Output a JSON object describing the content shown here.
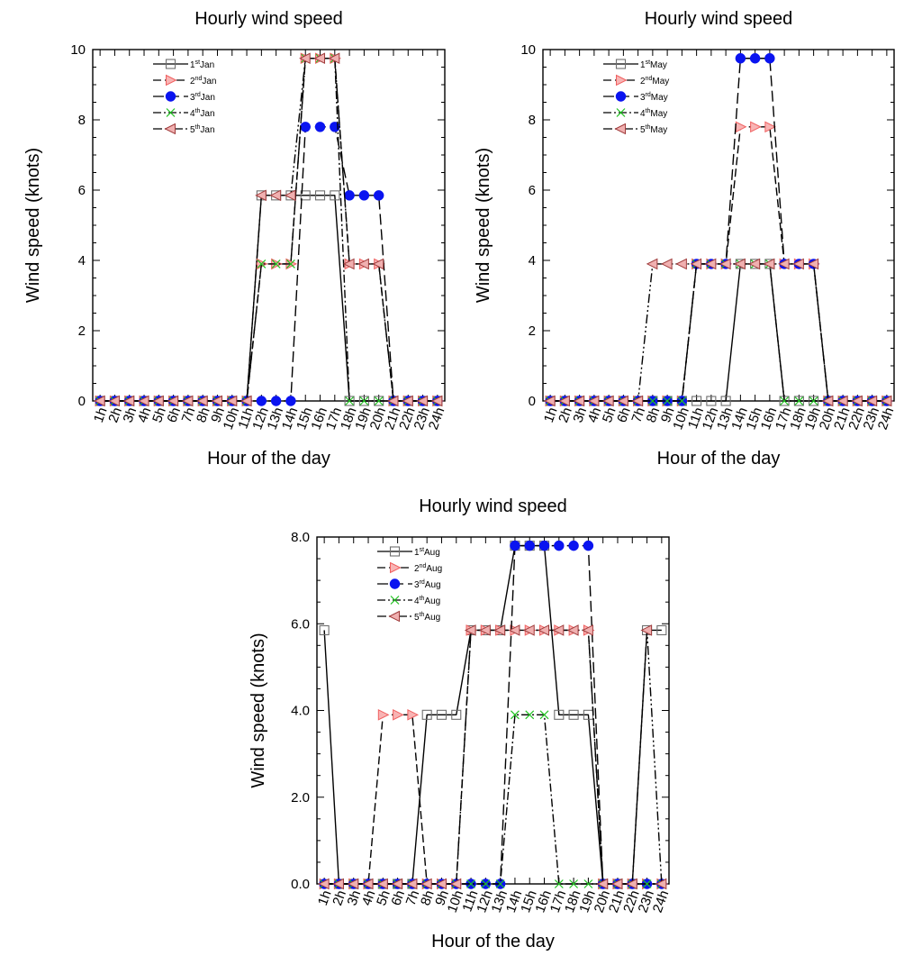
{
  "chart_data": [
    {
      "type": "line",
      "title": "Hourly wind speed",
      "xlabel": "Hour of the day",
      "ylabel": "Wind speed (knots)",
      "ylim": [
        0,
        10
      ],
      "yticks": [
        "0",
        "2",
        "4",
        "6",
        "8",
        "10"
      ],
      "ytick_values": [
        0,
        2,
        4,
        6,
        8,
        10
      ],
      "categories": [
        "1h",
        "2h",
        "3h",
        "4h",
        "5h",
        "6h",
        "7h",
        "8h",
        "9h",
        "10h",
        "11h",
        "12h",
        "13h",
        "14h",
        "15h",
        "16h",
        "17h",
        "18h",
        "19h",
        "20h",
        "21h",
        "22h",
        "23h",
        "24h"
      ],
      "legend_position": "top-left",
      "series": [
        {
          "name": "1st Jan",
          "label_main": "1",
          "label_sup": "st",
          "label_tail": "Jan",
          "marker": "square",
          "dash": "solid",
          "values": [
            0,
            0,
            0,
            0,
            0,
            0,
            0,
            0,
            0,
            0,
            0,
            5.85,
            5.85,
            5.85,
            5.85,
            5.85,
            5.85,
            0,
            0,
            0,
            0,
            0,
            0,
            0
          ]
        },
        {
          "name": "2nd Jan",
          "label_main": "2",
          "label_sup": "nd",
          "label_tail": "Jan",
          "marker": "triangle-right",
          "dash": "dash",
          "values": [
            0,
            0,
            0,
            0,
            0,
            0,
            0,
            0,
            0,
            0,
            0,
            3.9,
            3.9,
            3.9,
            9.75,
            9.75,
            9.75,
            3.9,
            3.9,
            3.9,
            0,
            0,
            0,
            0
          ]
        },
        {
          "name": "3rd Jan",
          "label_main": "3",
          "label_sup": "rd",
          "label_tail": "Jan",
          "marker": "circle",
          "dash": "longdash",
          "values": [
            0,
            0,
            0,
            0,
            0,
            0,
            0,
            0,
            0,
            0,
            0,
            0,
            0,
            0,
            7.8,
            7.8,
            7.8,
            5.85,
            5.85,
            5.85,
            0,
            0,
            0,
            0
          ]
        },
        {
          "name": "4th Jan",
          "label_main": "4",
          "label_sup": "th",
          "label_tail": "Jan",
          "marker": "x",
          "dash": "dashdot",
          "values": [
            0,
            0,
            0,
            0,
            0,
            0,
            0,
            0,
            0,
            0,
            0,
            3.9,
            3.9,
            3.9,
            9.75,
            9.75,
            9.75,
            0,
            0,
            0,
            0,
            0,
            0,
            0
          ]
        },
        {
          "name": "5th Jan",
          "label_main": "5",
          "label_sup": "th",
          "label_tail": "Jan",
          "marker": "triangle-left",
          "dash": "dashdotdot",
          "values": [
            0,
            0,
            0,
            0,
            0,
            0,
            0,
            0,
            0,
            0,
            0,
            5.85,
            5.85,
            5.85,
            9.75,
            9.75,
            9.75,
            3.9,
            3.9,
            3.9,
            0,
            0,
            0,
            0
          ]
        }
      ]
    },
    {
      "type": "line",
      "title": "Hourly wind speed",
      "xlabel": "Hour of the day",
      "ylabel": "Wind speed (knots)",
      "ylim": [
        0,
        10
      ],
      "yticks": [
        "0",
        "2",
        "4",
        "6",
        "8",
        "10"
      ],
      "ytick_values": [
        0,
        2,
        4,
        6,
        8,
        10
      ],
      "categories": [
        "1h",
        "2h",
        "3h",
        "4h",
        "5h",
        "6h",
        "7h",
        "8h",
        "9h",
        "10h",
        "11h",
        "12h",
        "13h",
        "14h",
        "15h",
        "16h",
        "17h",
        "18h",
        "19h",
        "20h",
        "21h",
        "22h",
        "23h",
        "24h"
      ],
      "legend_position": "top-left",
      "series": [
        {
          "name": "1st May",
          "label_main": "1",
          "label_sup": "st",
          "label_tail": "May",
          "marker": "square",
          "dash": "solid",
          "values": [
            0,
            0,
            0,
            0,
            0,
            0,
            0,
            0,
            0,
            0,
            0,
            0,
            0,
            3.9,
            3.9,
            3.9,
            0,
            0,
            0,
            0,
            0,
            0,
            0,
            0
          ]
        },
        {
          "name": "2nd May",
          "label_main": "2",
          "label_sup": "nd",
          "label_tail": "May",
          "marker": "triangle-right",
          "dash": "dash",
          "values": [
            0,
            0,
            0,
            0,
            0,
            0,
            0,
            0,
            0,
            0,
            3.9,
            3.9,
            3.9,
            7.8,
            7.8,
            7.8,
            3.9,
            3.9,
            3.9,
            0,
            0,
            0,
            0,
            0
          ]
        },
        {
          "name": "3rd May",
          "label_main": "3",
          "label_sup": "rd",
          "label_tail": "May",
          "marker": "circle",
          "dash": "longdash",
          "values": [
            0,
            0,
            0,
            0,
            0,
            0,
            0,
            0,
            0,
            0,
            3.9,
            3.9,
            3.9,
            9.75,
            9.75,
            9.75,
            3.9,
            3.9,
            3.9,
            0,
            0,
            0,
            0,
            0
          ]
        },
        {
          "name": "4th May",
          "label_main": "4",
          "label_sup": "th",
          "label_tail": "May",
          "marker": "x",
          "dash": "dashdot",
          "values": [
            0,
            0,
            0,
            0,
            0,
            0,
            0,
            0,
            0,
            0,
            3.9,
            3.9,
            3.9,
            3.9,
            3.9,
            3.9,
            0,
            0,
            0,
            0,
            0,
            0,
            0,
            0
          ]
        },
        {
          "name": "5th May",
          "label_main": "5",
          "label_sup": "th",
          "label_tail": "May",
          "marker": "triangle-left",
          "dash": "dashdotdot",
          "values": [
            0,
            0,
            0,
            0,
            0,
            0,
            0,
            3.9,
            3.9,
            3.9,
            3.9,
            3.9,
            3.9,
            3.9,
            3.9,
            3.9,
            3.9,
            3.9,
            3.9,
            0,
            0,
            0,
            0,
            0
          ]
        }
      ]
    },
    {
      "type": "line",
      "title": "Hourly wind speed",
      "xlabel": "Hour of the day",
      "ylabel": "Wind speed (knots)",
      "ylim": [
        0,
        8
      ],
      "yticks": [
        "0.0",
        "2.0",
        "4.0",
        "6.0",
        "8.0"
      ],
      "ytick_values": [
        0,
        2,
        4,
        6,
        8
      ],
      "categories": [
        "1h",
        "2h",
        "3h",
        "4h",
        "5h",
        "6h",
        "7h",
        "8h",
        "9h",
        "10h",
        "11h",
        "12h",
        "13h",
        "14h",
        "15h",
        "16h",
        "17h",
        "18h",
        "19h",
        "20h",
        "21h",
        "22h",
        "23h",
        "24h"
      ],
      "legend_position": "top-left",
      "series": [
        {
          "name": "1st Aug",
          "label_main": "1",
          "label_sup": "st",
          "label_tail": "Aug",
          "marker": "square",
          "dash": "solid",
          "values": [
            5.85,
            0,
            0,
            0,
            0,
            0,
            0,
            3.9,
            3.9,
            3.9,
            5.85,
            5.85,
            5.85,
            7.8,
            7.8,
            7.8,
            3.9,
            3.9,
            3.9,
            0,
            0,
            0,
            5.85,
            5.85
          ]
        },
        {
          "name": "2nd Aug",
          "label_main": "2",
          "label_sup": "nd",
          "label_tail": "Aug",
          "marker": "triangle-right",
          "dash": "dash",
          "values": [
            0,
            0,
            0,
            0,
            3.9,
            3.9,
            3.9,
            0,
            0,
            0,
            5.85,
            5.85,
            5.85,
            5.85,
            5.85,
            5.85,
            5.85,
            5.85,
            5.85,
            0,
            0,
            0,
            0,
            0
          ]
        },
        {
          "name": "3rd Aug",
          "label_main": "3",
          "label_sup": "rd",
          "label_tail": "Aug",
          "marker": "circle",
          "dash": "longdash",
          "values": [
            0,
            0,
            0,
            0,
            0,
            0,
            0,
            0,
            0,
            0,
            0,
            0,
            0,
            7.8,
            7.8,
            7.8,
            7.8,
            7.8,
            7.8,
            0,
            0,
            0,
            0,
            0
          ]
        },
        {
          "name": "4th Aug",
          "label_main": "4",
          "label_sup": "th",
          "label_tail": "Aug",
          "marker": "x",
          "dash": "dashdot",
          "values": [
            0,
            0,
            0,
            0,
            0,
            0,
            0,
            0,
            0,
            0,
            0,
            0,
            0,
            3.9,
            3.9,
            3.9,
            0,
            0,
            0,
            0,
            0,
            0,
            0,
            0
          ]
        },
        {
          "name": "5th Aug",
          "label_main": "5",
          "label_sup": "th",
          "label_tail": "Aug",
          "marker": "triangle-left",
          "dash": "dashdotdot",
          "values": [
            0,
            0,
            0,
            0,
            0,
            0,
            0,
            0,
            0,
            0,
            5.85,
            5.85,
            5.85,
            5.85,
            5.85,
            5.85,
            5.85,
            5.85,
            5.85,
            0,
            0,
            0,
            5.85,
            0
          ]
        }
      ]
    }
  ]
}
